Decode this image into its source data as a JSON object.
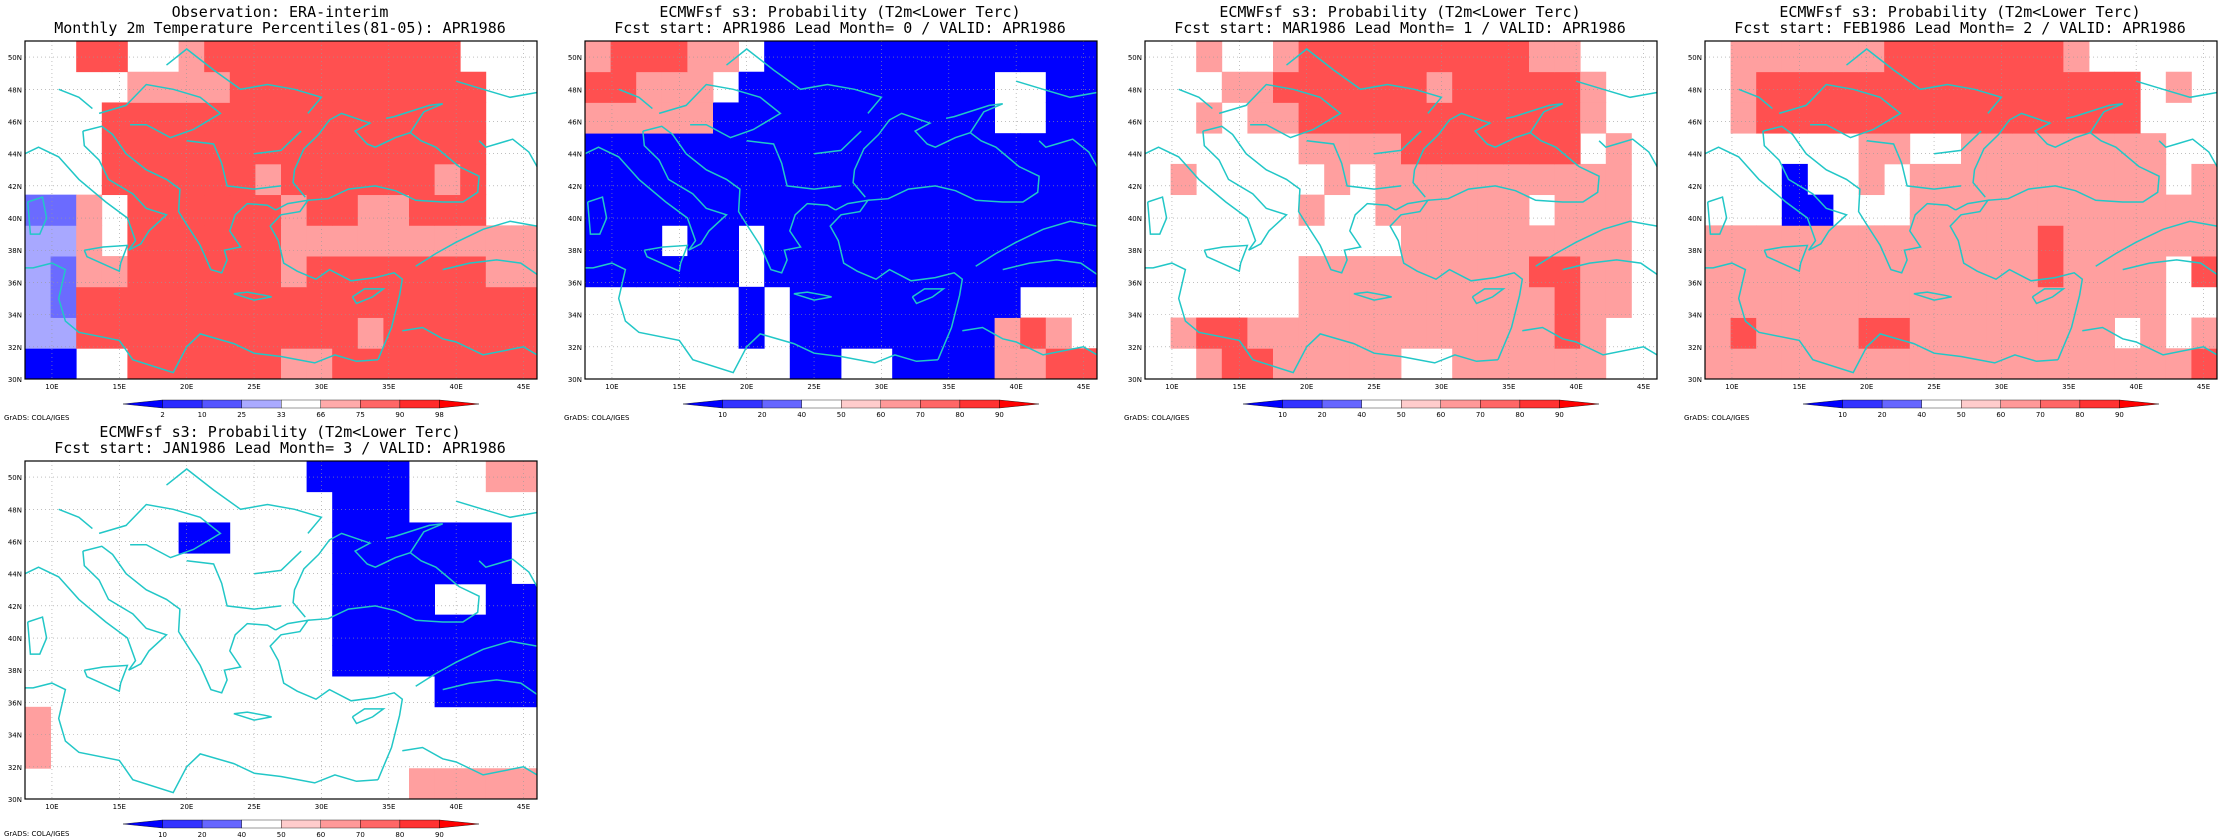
{
  "lat_labels": [
    "30N",
    "32N",
    "34N",
    "36N",
    "38N",
    "40N",
    "42N",
    "44N",
    "46N",
    "48N",
    "50N"
  ],
  "lon_labels": [
    "10E",
    "15E",
    "20E",
    "25E",
    "30E",
    "35E",
    "40E",
    "45E"
  ],
  "credit": "GrADS: COLA/IGES",
  "colors": {
    "blue": [
      "#0000ff",
      "#3333ff",
      "#6666ff",
      "#9999ff",
      "#ccccff"
    ],
    "red": [
      "#ffcccc",
      "#ff9999",
      "#ff6666",
      "#ff3333",
      "#ff0000",
      "#cc0000"
    ],
    "coast": "#22c7c7"
  },
  "panels": [
    {
      "title_line1": "Observation: ERA-interim",
      "title_line2": "Monthly 2m Temperature Percentiles(81-05): APR1986",
      "colorbar_labels": [
        "2",
        "10",
        "25",
        "33",
        "66",
        "75",
        "90",
        "98"
      ],
      "colorbar_colors": [
        "#0000ff",
        "#2a2aff",
        "#5555ff",
        "#aaaaff",
        "#ffffff",
        "#ffaaaa",
        "#ff6666",
        "#ff2a2a",
        "#ff0000"
      ],
      "grid_rows": [
        "BB..RRRRRRrrRRRRRRRR",
        "ccRRRRRRRRRRRrRRRRRR",
        "cbRRRRRRRRRRRRRRRRRR",
        "cbrrRRRRRRrRRRRRRRrr",
        "ccr.RRRRRRrrrrrrrrrr",
        "bbr.RRRRRRrRRrrRRR..",
        "...RRRRRRrRRRRRRrR..",
        "...RRRRRRRRRRRRRRR..",
        "...RRRRRRRRRRRRRRR..",
        "....rrrrRRRRRRRRRR..",
        "..RR..rRRRRRRRRRR..."
      ]
    },
    {
      "title_line1": "ECMWFsf s3: Probability (T2m<Lower Terc)",
      "title_line2": "Fcst start: APR1986  Lead Month= 0 / VALID: APR1986",
      "colorbar_labels": [
        "10",
        "20",
        "40",
        "50",
        "60",
        "70",
        "80",
        "90"
      ],
      "colorbar_colors": [
        "#0000ff",
        "#3333ff",
        "#6666ff",
        "#ffffff",
        "#ffcccc",
        "#ff9999",
        "#ff6666",
        "#ff3333",
        "#ff0000"
      ],
      "grid_rows": [
        "........BB..BBBBrrRR",
        "......B.BBBBBBBBrRr.",
        "......B.BBBBBBBBB...",
        "BBBBBB.BBBBBBBBBBBBB",
        "BBB.BB.BBBBBBBBBBBBB",
        "BBBBBBBBBBBBBBBBBBBB",
        "BBBBBBBBBBBBBBBBBBBB",
        "BBBBBBBBBBBBBBBBBBBB",
        "rrrrrBBBBBBBBBBB..BB",
        "RRrrr.BBBBBBBBBB..BB",
        "rRRRrr.BBBBBBBBBBBBB"
      ]
    },
    {
      "title_line1": "ECMWFsf s3: Probability (T2m<Lower Terc)",
      "title_line2": "Fcst start: MAR1986  Lead Month= 1 / VALID: APR1986",
      "colorbar_labels": [
        "10",
        "20",
        "40",
        "50",
        "60",
        "70",
        "80",
        "90"
      ],
      "colorbar_colors": [
        "#0000ff",
        "#3333ff",
        "#6666ff",
        "#ffffff",
        "#ffcccc",
        "#ff9999",
        "#ff6666",
        "#ff3333",
        "#ff0000"
      ],
      "grid_rows": [
        "..rRRrrrrr..rrrrrr..",
        ".rRRrrrrrrrrrrrrRr..",
        "......rrrrrrrrrrRrr.",
        "......rrrrrrrrrRRrr.",
        "..........rrrrrrrrr.",
        "......r..rrrrrr.rrr.",
        ".r.....r.rrrrrrrrrr.",
        "......rrrrRRRRRRR.r.",
        "..r.rrRRRRRRRRRRRr..",
        "...rrRRRRRRrRRRRRr..",
        "..r..rRRRRRRRRRrr..."
      ]
    },
    {
      "title_line1": "ECMWFsf s3: Probability (T2m<Lower Terc)",
      "title_line2": "Fcst start: FEB1986  Lead Month= 2 / VALID: APR1986",
      "colorbar_labels": [
        "10",
        "20",
        "40",
        "50",
        "60",
        "70",
        "80",
        "90"
      ],
      "colorbar_colors": [
        "#0000ff",
        "#3333ff",
        "#6666ff",
        "#ffffff",
        "#ffcccc",
        "#ff9999",
        "#ff6666",
        "#ff3333",
        "#ff0000"
      ],
      "grid_rows": [
        "rrrrrrrrrrrrrrrrrrrR",
        "rRrrrrRRrrrrrrrr.r.r",
        "rrrrrrrrrrrrrrrrrr..",
        "rrrrrrrrrrrrrRrrrr.R",
        "rrrrrrrrrrrrrRrrrrrr",
        "...BB...rrrrrrrrrrrr",
        "...B..r.rrrrrrrrrr.r",
        "......rr..rrrrrrrr..",
        ".rRRRRRRRRRRRRRRR...",
        ".rRRRRRRRRRRRRRRR.r.",
        ".rrrrrrRRRRRRRr....."
      ]
    },
    {
      "title_line1": "ECMWFsf s3: Probability (T2m<Lower Terc)",
      "title_line2": "Fcst start: JAN1986  Lead Month= 3 / VALID: APR1986",
      "colorbar_labels": [
        "10",
        "20",
        "40",
        "50",
        "60",
        "70",
        "80",
        "90"
      ],
      "colorbar_colors": [
        "#0000ff",
        "#3333ff",
        "#6666ff",
        "#ffffff",
        "#ffcccc",
        "#ff9999",
        "#ff6666",
        "#ff3333",
        "#ff0000"
      ],
      "grid_rows": [
        "...............rrrrr",
        "r...................",
        "r...................",
        "................BBBB",
        "............BBBBBBBB",
        "............BBBBBBBB",
        "............BBBB..BB",
        "............BBBBBBB.",
        "......BB....BBBBBBB.",
        "............BBB.....",
        "...........BBBB...rr"
      ]
    }
  ]
}
